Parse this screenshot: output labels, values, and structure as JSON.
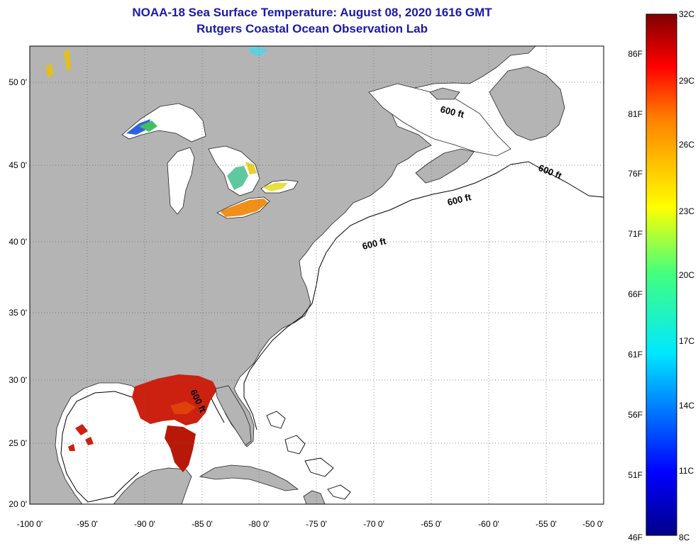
{
  "header": {
    "title": "NOAA-18 Sea Surface Temperature:  August 08, 2020 1616 GMT",
    "subtitle": "Rutgers Coastal Ocean Observation Lab"
  },
  "axes": {
    "lat_labels": [
      "50 0'",
      "45 0'",
      "40 0'",
      "35 0'",
      "30 0'",
      "25 0'",
      "20 0'"
    ],
    "lon_labels": [
      "-100 0'",
      "-95 0'",
      "-90 0'",
      "-85 0'",
      "-80 0'",
      "-75 0'",
      "-70 0'",
      "-65 0'",
      "-60 0'",
      "-55 0'",
      "-50 0'"
    ]
  },
  "contour_label": "600 ft",
  "colorbar": {
    "celsius_labels": [
      "32C",
      "29C",
      "26C",
      "23C",
      "20C",
      "17C",
      "14C",
      "11C",
      "8C"
    ],
    "fahrenheit_labels": [
      "86F",
      "81F",
      "76F",
      "71F",
      "66F",
      "61F",
      "56F",
      "51F",
      "46F"
    ]
  },
  "colors": {
    "title": "#1a1aa8",
    "land": "#b4b4b4",
    "ocean": "#ffffff",
    "sst_warm": "#cc2200",
    "sst_orange": "#f08a1a"
  }
}
